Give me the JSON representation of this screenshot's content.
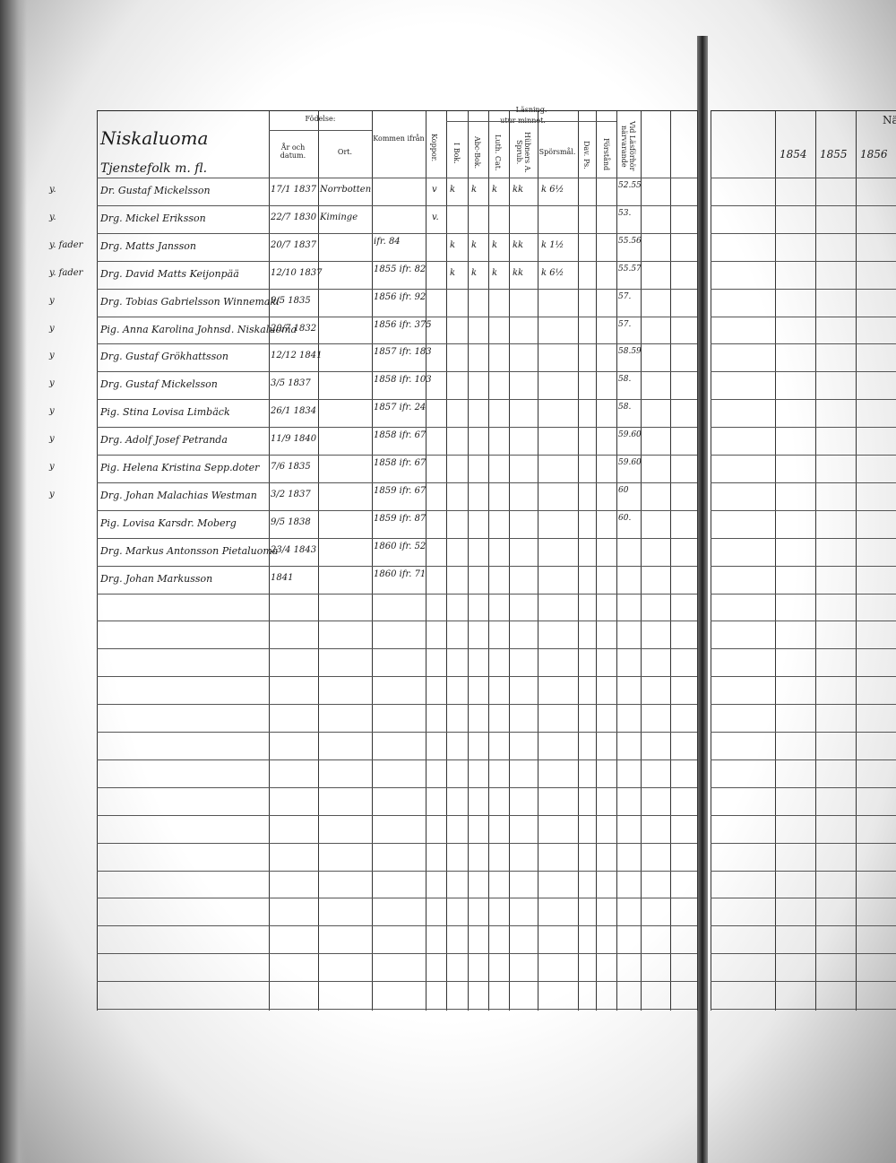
{
  "header": {
    "title": "Niskaluoma",
    "section": "Tjenstefolk m. fl.",
    "columns": {
      "birth": "Födelse:",
      "year": "År och datum.",
      "place": "Ort.",
      "from": "Kommen ifrån",
      "pox": "Koppor.",
      "reading": "Läsning.",
      "memory": "utur minnet.",
      "book": "I Bok.",
      "abc": "Abc-Bok.",
      "cat": "Luth. Cat.",
      "hubner": "Hübners A. Sprub.",
      "questions": "Spörsmål.",
      "psalms": "Dav. Ps.",
      "understanding": "Förstånd",
      "present": "Vid Läsförhör närvarande"
    }
  },
  "rows": [
    {
      "margin": "y.",
      "name": "Dr. Gustaf Mickelsson",
      "date": "17/1 1837",
      "place": "Norrbotten",
      "pox": "v",
      "marks": [
        "k",
        "k",
        "k",
        "kk",
        "k 6½"
      ],
      "present": "52.55"
    },
    {
      "margin": "y.",
      "name": "Drg. Mickel Eriksson",
      "date": "22/7 1830",
      "place": "Kiminge",
      "pox": "v.",
      "present": "53."
    },
    {
      "margin": "y. fader",
      "name": "Drg. Matts Jansson",
      "date": "20/7 1837",
      "from": "ifr. 84",
      "marks": [
        "k",
        "k",
        "k",
        "kk",
        "k 1½"
      ],
      "present": "55.56"
    },
    {
      "margin": "y. fader",
      "name": "Drg. David Matts Keijonpää",
      "date": "12/10 1837",
      "from": "1855 ifr. 82",
      "marks": [
        "k",
        "k",
        "k",
        "kk",
        "k 6½"
      ],
      "present": "55.57"
    },
    {
      "margin": "y",
      "name": "Drg. Tobias Gabrielsson Winnemaki",
      "date": "9/5 1835",
      "from": "1856 ifr. 92",
      "present": "57."
    },
    {
      "margin": "y",
      "name": "Pig. Anna Karolina Johnsd. Niskaluoma",
      "date": "20/7 1832",
      "from": "1856 ifr. 375",
      "present": "57."
    },
    {
      "margin": "y",
      "name": "Drg. Gustaf Grökhattsson",
      "date": "12/12 1841",
      "from": "1857 ifr. 183",
      "present": "58.59"
    },
    {
      "margin": "y",
      "name": "Drg. Gustaf Mickelsson",
      "date": "3/5 1837",
      "from": "1858 ifr. 103",
      "present": "58."
    },
    {
      "margin": "y",
      "name": "Pig. Stina Lovisa Limbäck",
      "date": "26/1 1834",
      "from": "1857 ifr. 24",
      "present": "58."
    },
    {
      "margin": "y",
      "name": "Drg. Adolf Josef Petranda",
      "date": "11/9 1840",
      "from": "1858 ifr. 67",
      "present": "59.60"
    },
    {
      "margin": "y",
      "name": "Pig. Helena Kristina Sepp.doter",
      "date": "7/6 1835",
      "from": "1858 ifr. 67",
      "present": "59.60"
    },
    {
      "margin": "y",
      "name": "Drg. Johan Malachias Westman",
      "date": "3/2 1837",
      "from": "1859 ifr. 67",
      "present": "60"
    },
    {
      "name": "Pig. Lovisa Karsdr. Moberg",
      "date": "9/5 1838",
      "from": "1859 ifr. 87",
      "present": "60."
    },
    {
      "name": "Drg. Markus Antonsson Pietaluoma",
      "date": "23/4 1843",
      "from": "1860 ifr. 52"
    },
    {
      "name": "Drg. Johan Markusson",
      "date": "1841",
      "from": "1860 ifr. 71"
    }
  ],
  "right_page": {
    "years": [
      "1854",
      "1855",
      "1856"
    ],
    "partial": "Nä"
  }
}
